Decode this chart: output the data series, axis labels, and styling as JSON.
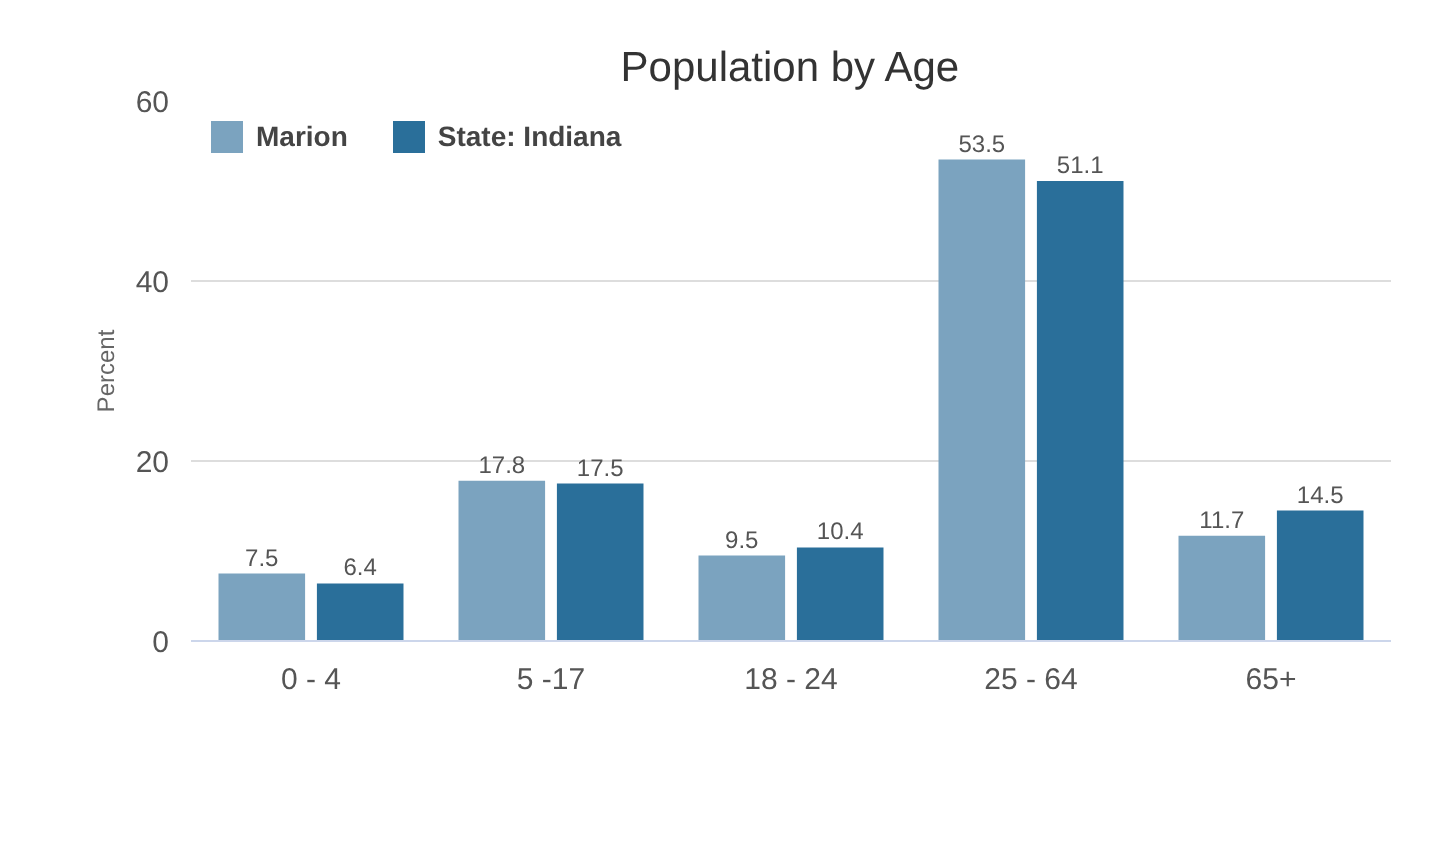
{
  "chart_data": {
    "type": "bar",
    "title": "Population by Age",
    "ylabel": "Percent",
    "categories": [
      "0 - 4",
      "5 -17",
      "18 - 24",
      "25 - 64",
      "65+"
    ],
    "series": [
      {
        "name": "Marion",
        "color": "#7ba3bf",
        "values": [
          7.5,
          17.8,
          9.5,
          53.5,
          11.7
        ]
      },
      {
        "name": "State: Indiana",
        "color": "#2a6f9a",
        "values": [
          6.4,
          17.5,
          10.4,
          51.1,
          14.5
        ]
      }
    ],
    "ylim": [
      0,
      60
    ],
    "yticks": [
      0,
      20,
      40,
      60
    ],
    "grid": "y",
    "legend": "top left",
    "data_labels": true
  }
}
